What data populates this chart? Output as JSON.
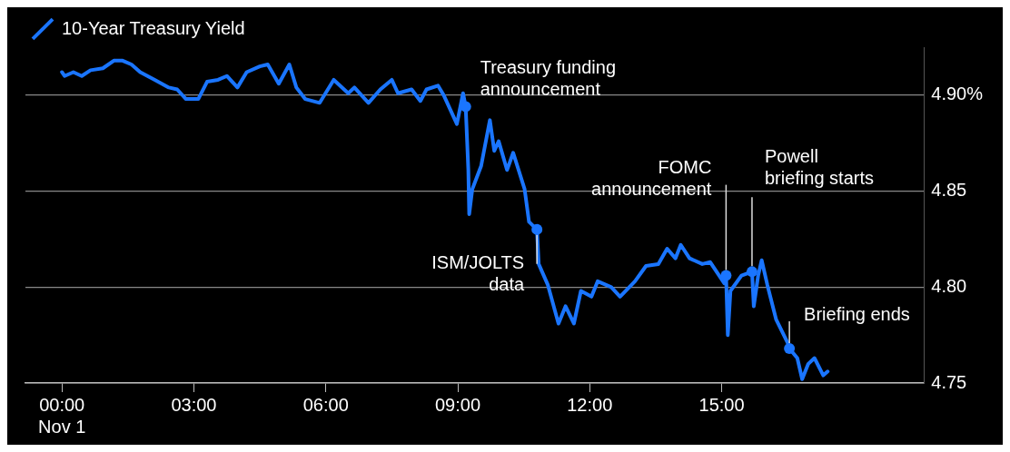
{
  "chart_data": {
    "type": "line",
    "xlim": [
      -0.83,
      19.6
    ],
    "ylim": [
      4.75,
      4.925
    ],
    "xticks": [
      {
        "value": 0,
        "label": "00:00\nNov 1"
      },
      {
        "value": 3,
        "label": "03:00"
      },
      {
        "value": 6,
        "label": "06:00"
      },
      {
        "value": 9,
        "label": "09:00"
      },
      {
        "value": 12,
        "label": "12:00"
      },
      {
        "value": 15,
        "label": "15:00"
      }
    ],
    "yticks": [
      {
        "value": 4.75,
        "label": "4.75"
      },
      {
        "value": 4.8,
        "label": "4.80"
      },
      {
        "value": 4.85,
        "label": "4.85"
      },
      {
        "value": 4.9,
        "label": "4.90%"
      }
    ],
    "grid": "y",
    "legend": "top left",
    "marker": "none",
    "line_style": "solid",
    "series": [
      {
        "name": "10-Year Treasury Yield",
        "color": "#1a75ff",
        "x": [
          0,
          0.06,
          0.26,
          0.45,
          0.65,
          0.93,
          1.18,
          1.38,
          1.58,
          1.78,
          2.11,
          2.43,
          2.62,
          2.82,
          3.1,
          3.3,
          3.55,
          3.75,
          3.99,
          4.2,
          4.5,
          4.68,
          4.93,
          5.17,
          5.33,
          5.53,
          5.86,
          6.18,
          6.51,
          6.65,
          6.97,
          7.24,
          7.5,
          7.64,
          7.95,
          8.15,
          8.29,
          8.55,
          8.68,
          8.98,
          9.12,
          9.18,
          9.24,
          9.26,
          9.33,
          9.53,
          9.73,
          9.83,
          9.93,
          10.12,
          10.26,
          10.52,
          10.62,
          10.8,
          10.84,
          11.05,
          11.29,
          11.45,
          11.64,
          11.8,
          12.04,
          12.18,
          12.49,
          12.69,
          13.03,
          13.28,
          13.56,
          13.76,
          13.95,
          14.07,
          14.27,
          14.56,
          14.74,
          15.06,
          15.1,
          15.14,
          15.2,
          15.45,
          15.69,
          15.73,
          15.83,
          15.91,
          16.04,
          16.24,
          16.52,
          16.54,
          16.72,
          16.83,
          16.97,
          17.11,
          17.31,
          17.41
        ],
        "values": [
          4.912,
          4.91,
          4.912,
          4.91,
          4.913,
          4.914,
          4.918,
          4.918,
          4.916,
          4.912,
          4.908,
          4.904,
          4.903,
          4.898,
          4.898,
          4.907,
          4.908,
          4.91,
          4.904,
          4.912,
          4.915,
          4.916,
          4.906,
          4.916,
          4.904,
          4.898,
          4.896,
          4.908,
          4.901,
          4.904,
          4.896,
          4.903,
          4.908,
          4.901,
          4.903,
          4.897,
          4.903,
          4.905,
          4.9,
          4.885,
          4.901,
          4.894,
          4.861,
          4.838,
          4.851,
          4.863,
          4.887,
          4.871,
          4.876,
          4.861,
          4.87,
          4.851,
          4.834,
          4.83,
          4.812,
          4.801,
          4.781,
          4.79,
          4.781,
          4.798,
          4.795,
          4.803,
          4.8,
          4.795,
          4.803,
          4.811,
          4.812,
          4.82,
          4.815,
          4.822,
          4.815,
          4.812,
          4.813,
          4.802,
          4.806,
          4.775,
          4.798,
          4.806,
          4.808,
          4.79,
          4.806,
          4.814,
          4.801,
          4.783,
          4.77,
          4.768,
          4.763,
          4.752,
          4.76,
          4.763,
          4.754,
          4.756
        ]
      }
    ],
    "annotations": [
      {
        "text": "Treasury funding\nannouncement",
        "x": 9.18,
        "y": 4.894
      },
      {
        "text": "ISM/JOLTS\ndata",
        "x": 10.8,
        "y": 4.83
      },
      {
        "text": "FOMC\nannouncement",
        "x": 15.1,
        "y": 4.806
      },
      {
        "text": "Powell\nbriefing starts",
        "x": 15.69,
        "y": 4.808
      },
      {
        "text": "Briefing ends",
        "x": 16.54,
        "y": 4.768
      }
    ]
  }
}
